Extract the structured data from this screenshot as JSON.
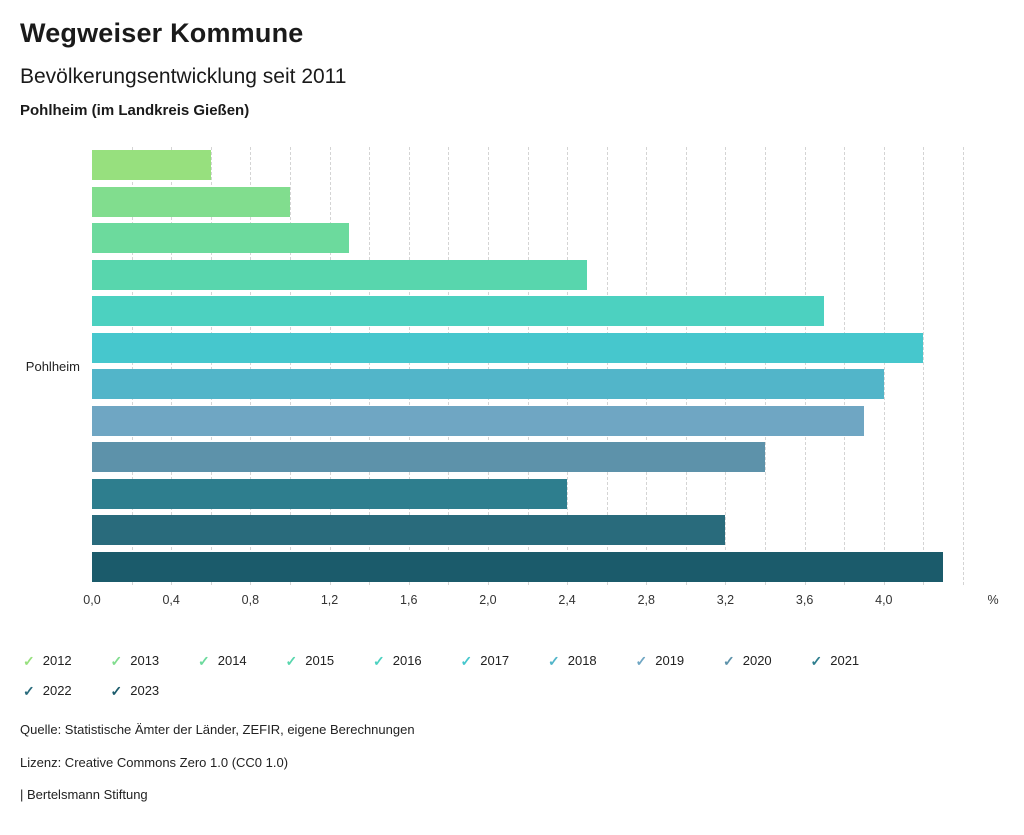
{
  "header": {
    "title": "Wegweiser Kommune",
    "subtitle": "Bevölkerungsentwicklung seit 2011",
    "location": "Pohlheim (im Landkreis Gießen)"
  },
  "chart_data": {
    "type": "bar",
    "orientation": "horizontal",
    "group_label": "Pohlheim",
    "categories": [
      "2012",
      "2013",
      "2014",
      "2015",
      "2016",
      "2017",
      "2018",
      "2019",
      "2020",
      "2021",
      "2022",
      "2023"
    ],
    "values": [
      0.6,
      1.0,
      1.3,
      2.5,
      3.7,
      4.2,
      4.0,
      3.9,
      3.4,
      2.4,
      3.2,
      4.3
    ],
    "colors": [
      "#97e07e",
      "#81dd8e",
      "#6cda9d",
      "#58d6ad",
      "#4cd1c0",
      "#46c7cd",
      "#52b5c9",
      "#6fa6c3",
      "#5d92aa",
      "#2e7e8e",
      "#296b7c",
      "#1b5b6b"
    ],
    "xlabel": "%",
    "xlim": [
      0,
      4.4
    ],
    "grid_step": 0.2,
    "grid": "dashed-vertical",
    "xticks": [
      "0,0",
      "0,4",
      "0,8",
      "1,2",
      "1,6",
      "2,0",
      "2,4",
      "2,8",
      "3,2",
      "3,6",
      "4,0"
    ],
    "xtick_values": [
      0,
      0.4,
      0.8,
      1.2,
      1.6,
      2.0,
      2.4,
      2.8,
      3.2,
      3.6,
      4.0
    ]
  },
  "legend": {
    "items": [
      "2012",
      "2013",
      "2014",
      "2015",
      "2016",
      "2017",
      "2018",
      "2019",
      "2020",
      "2021",
      "2022",
      "2023"
    ]
  },
  "footer": {
    "source": "Quelle: Statistische Ämter der Länder, ZEFIR, eigene Berechnungen",
    "license": "Lizenz: Creative Commons Zero 1.0 (CC0 1.0)",
    "brand": "| Bertelsmann Stiftung"
  }
}
